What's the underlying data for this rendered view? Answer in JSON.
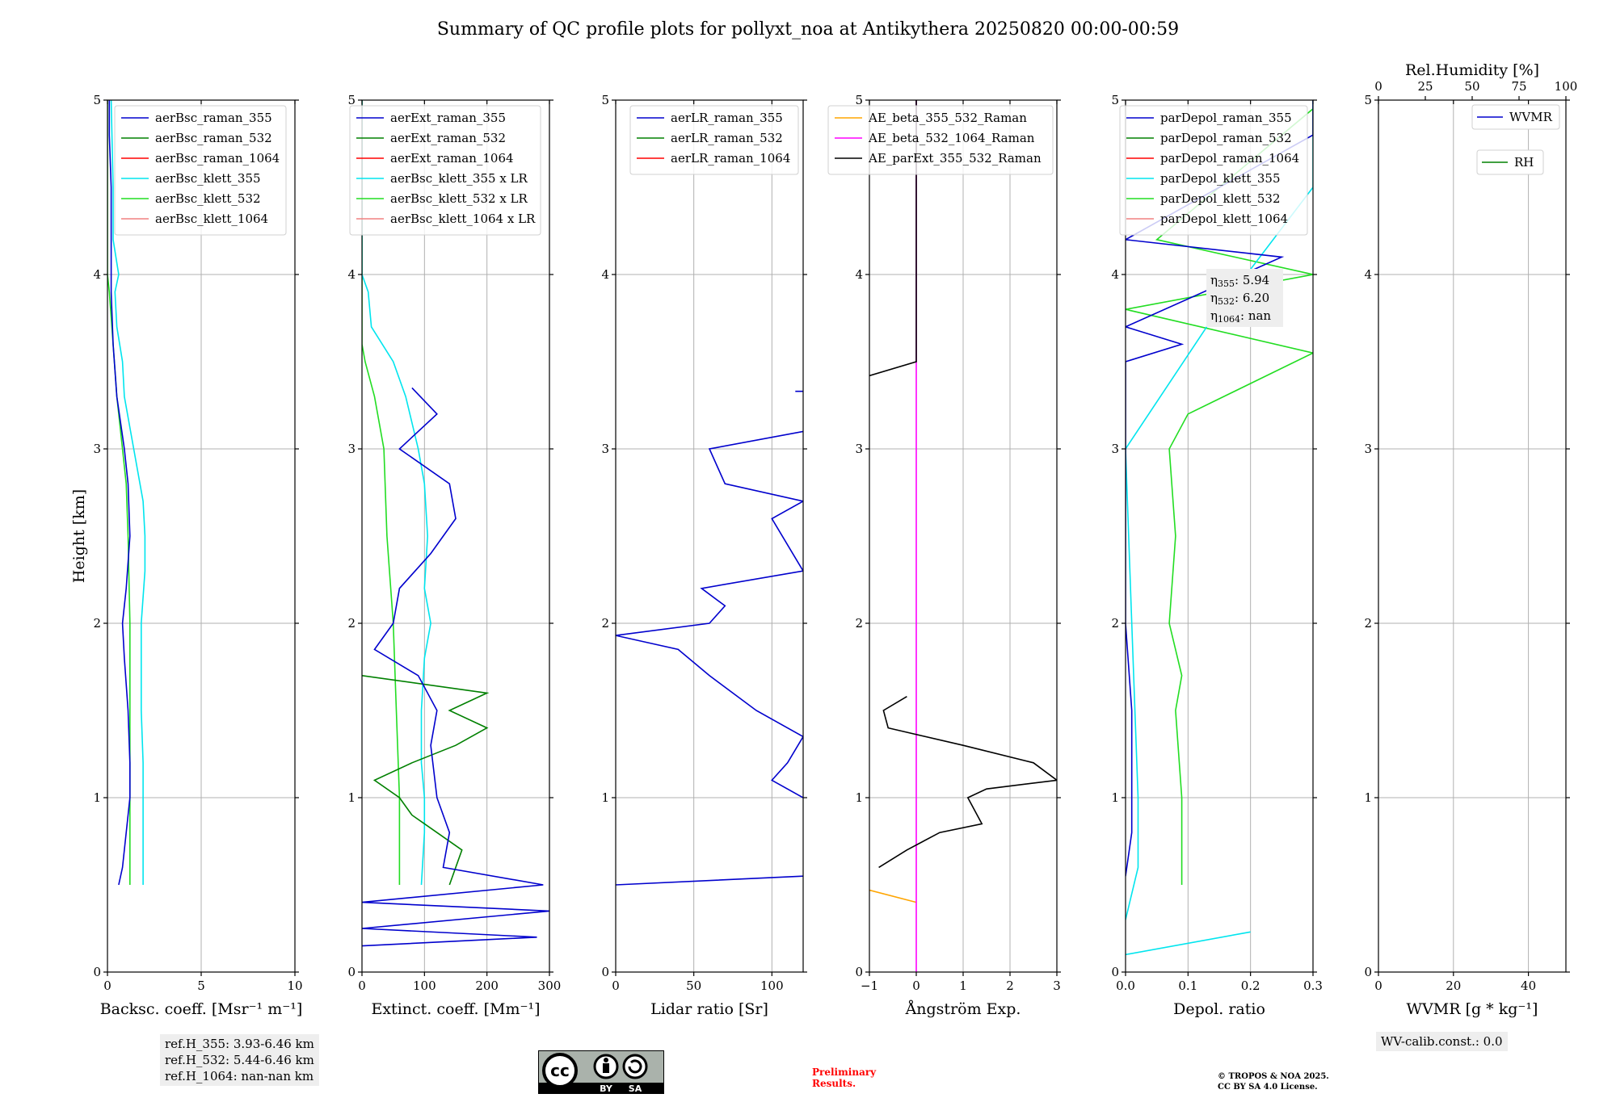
{
  "figure": {
    "title": "Summary of QC profile plots for pollyxt_noa at Antikythera 20250820 00:00-00:59"
  },
  "colors": {
    "raman_355": "#0000cd",
    "raman_532": "#008000",
    "raman_1064": "#ff0000",
    "klett_355": "#00e5ee",
    "klett_532": "#22dd22",
    "klett_1064": "#f08080",
    "orange": "#ffa500",
    "magenta": "#ff00ff",
    "black": "#000000"
  },
  "chart_data": [
    {
      "type": "line",
      "xlabel": "Backsc. coeff. [Msr⁻¹ m⁻¹]",
      "ylabel": "Height [km]",
      "xlim": [
        0,
        10
      ],
      "ylim": [
        0,
        5
      ],
      "xticks": [
        0,
        5,
        10
      ],
      "yticks": [
        0,
        1,
        2,
        3,
        4,
        5
      ],
      "grid": true,
      "legend_position": "upper-right",
      "legend": [
        "aerBsc_raman_355",
        "aerBsc_raman_532",
        "aerBsc_raman_1064",
        "aerBsc_klett_355",
        "aerBsc_klett_532",
        "aerBsc_klett_1064"
      ],
      "series": [
        {
          "name": "aerBsc_klett_355",
          "color": "klett_355",
          "points": [
            [
              1.9,
              0.5
            ],
            [
              1.9,
              0.8
            ],
            [
              1.9,
              1.0
            ],
            [
              1.9,
              1.2
            ],
            [
              1.8,
              1.5
            ],
            [
              1.8,
              1.8
            ],
            [
              1.8,
              2.0
            ],
            [
              2.0,
              2.3
            ],
            [
              2.0,
              2.5
            ],
            [
              1.9,
              2.7
            ],
            [
              1.4,
              3.0
            ],
            [
              0.9,
              3.3
            ],
            [
              0.8,
              3.5
            ],
            [
              0.5,
              3.7
            ],
            [
              0.4,
              3.9
            ],
            [
              0.6,
              4.0
            ],
            [
              0.3,
              4.2
            ],
            [
              0.3,
              4.5
            ],
            [
              0.2,
              5.0
            ]
          ]
        },
        {
          "name": "aerBsc_klett_532",
          "color": "klett_532",
          "points": [
            [
              1.2,
              0.5
            ],
            [
              1.2,
              0.8
            ],
            [
              1.2,
              1.0
            ],
            [
              1.2,
              1.5
            ],
            [
              1.2,
              2.0
            ],
            [
              1.1,
              2.5
            ],
            [
              1.0,
              2.8
            ],
            [
              0.8,
              3.0
            ],
            [
              0.5,
              3.3
            ],
            [
              0.3,
              3.6
            ],
            [
              0.1,
              3.9
            ],
            [
              0.0,
              4.0
            ],
            [
              0.0,
              5.0
            ]
          ]
        },
        {
          "name": "aerBsc_raman_355",
          "color": "raman_355",
          "points": [
            [
              0.6,
              0.5
            ],
            [
              0.8,
              0.6
            ],
            [
              1.0,
              0.8
            ],
            [
              1.2,
              1.0
            ],
            [
              1.2,
              1.2
            ],
            [
              1.1,
              1.5
            ],
            [
              0.9,
              1.8
            ],
            [
              0.8,
              2.0
            ],
            [
              1.0,
              2.2
            ],
            [
              1.2,
              2.5
            ],
            [
              1.1,
              2.8
            ],
            [
              0.9,
              3.0
            ],
            [
              0.5,
              3.3
            ],
            [
              0.3,
              3.6
            ],
            [
              0.2,
              3.9
            ],
            [
              0.2,
              4.2
            ],
            [
              0.2,
              4.5
            ],
            [
              0.1,
              4.8
            ],
            [
              0.1,
              5.0
            ]
          ]
        }
      ],
      "annotation": [
        "ref.H_355: 3.93-6.46 km",
        "ref.H_532: 5.44-6.46 km",
        "ref.H_1064: nan-nan km"
      ]
    },
    {
      "type": "line",
      "xlabel": "Extinct. coeff. [Mm⁻¹]",
      "xlim": [
        0,
        300
      ],
      "ylim": [
        0,
        5
      ],
      "xticks": [
        0,
        100,
        200,
        300
      ],
      "yticks": [
        0,
        1,
        2,
        3,
        4,
        5
      ],
      "grid": true,
      "legend_position": "upper-right",
      "legend": [
        "aerExt_raman_355",
        "aerExt_raman_532",
        "aerExt_raman_1064",
        "aerBsc_klett_355 x LR",
        "aerBsc_klett_532 x LR",
        "aerBsc_klett_1064 x LR"
      ],
      "series": [
        {
          "name": "aerBsc_klett_532 x LR",
          "color": "klett_532",
          "points": [
            [
              60,
              0.5
            ],
            [
              60,
              1.0
            ],
            [
              55,
              1.5
            ],
            [
              50,
              2.0
            ],
            [
              40,
              2.5
            ],
            [
              35,
              3.0
            ],
            [
              20,
              3.3
            ],
            [
              5,
              3.5
            ],
            [
              0,
              3.6
            ],
            [
              0,
              5.0
            ]
          ]
        },
        {
          "name": "aerBsc_klett_355 x LR",
          "color": "klett_355",
          "points": [
            [
              95,
              0.5
            ],
            [
              100,
              0.8
            ],
            [
              100,
              1.0
            ],
            [
              95,
              1.2
            ],
            [
              95,
              1.5
            ],
            [
              100,
              1.8
            ],
            [
              110,
              2.0
            ],
            [
              100,
              2.2
            ],
            [
              105,
              2.5
            ],
            [
              100,
              2.8
            ],
            [
              90,
              3.0
            ],
            [
              70,
              3.3
            ],
            [
              50,
              3.5
            ],
            [
              15,
              3.7
            ],
            [
              10,
              3.9
            ],
            [
              0,
              4.0
            ],
            [
              0,
              5.0
            ]
          ]
        },
        {
          "name": "aerExt_raman_532",
          "color": "raman_532",
          "points": [
            [
              140,
              0.5
            ],
            [
              160,
              0.7
            ],
            [
              120,
              0.8
            ],
            [
              80,
              0.9
            ],
            [
              60,
              1.0
            ],
            [
              20,
              1.1
            ],
            [
              80,
              1.2
            ],
            [
              150,
              1.3
            ],
            [
              200,
              1.4
            ],
            [
              140,
              1.5
            ],
            [
              200,
              1.6
            ],
            [
              0,
              1.7
            ]
          ]
        },
        {
          "name": "aerExt_raman_355",
          "color": "raman_355",
          "points": [
            [
              0,
              0.15
            ],
            [
              280,
              0.2
            ],
            [
              0,
              0.25
            ],
            [
              300,
              0.35
            ],
            [
              0,
              0.4
            ],
            [
              290,
              0.5
            ],
            [
              130,
              0.6
            ],
            [
              140,
              0.8
            ],
            [
              120,
              1.0
            ],
            [
              110,
              1.3
            ],
            [
              120,
              1.5
            ],
            [
              90,
              1.7
            ],
            [
              20,
              1.85
            ],
            [
              50,
              2.0
            ],
            [
              60,
              2.2
            ],
            [
              110,
              2.4
            ],
            [
              150,
              2.6
            ],
            [
              140,
              2.8
            ],
            [
              60,
              3.0
            ],
            [
              120,
              3.2
            ],
            [
              80,
              3.35
            ]
          ]
        }
      ]
    },
    {
      "type": "line",
      "xlabel": "Lidar ratio [Sr]",
      "xlim": [
        0,
        120
      ],
      "ylim": [
        0,
        5
      ],
      "xticks": [
        0,
        50,
        100
      ],
      "yticks": [
        0,
        1,
        2,
        3,
        4,
        5
      ],
      "grid": true,
      "legend_position": "upper-right",
      "legend": [
        "aerLR_raman_355",
        "aerLR_raman_532",
        "aerLR_raman_1064"
      ],
      "series": [
        {
          "name": "aerLR_raman_355",
          "color": "raman_355",
          "points": [
            [
              0,
              0.5
            ],
            [
              120,
              0.55
            ],
            [
              null,
              null
            ],
            [
              120,
              1.0
            ],
            [
              100,
              1.1
            ],
            [
              110,
              1.2
            ],
            [
              120,
              1.35
            ],
            [
              90,
              1.5
            ],
            [
              60,
              1.7
            ],
            [
              40,
              1.85
            ],
            [
              0,
              1.93
            ],
            [
              60,
              2.0
            ],
            [
              70,
              2.1
            ],
            [
              55,
              2.2
            ],
            [
              120,
              2.3
            ],
            [
              100,
              2.6
            ],
            [
              120,
              2.7
            ],
            [
              70,
              2.8
            ],
            [
              60,
              3.0
            ],
            [
              120,
              3.1
            ],
            [
              null,
              null
            ],
            [
              115,
              3.33
            ],
            [
              120,
              3.33
            ]
          ]
        }
      ]
    },
    {
      "type": "line",
      "xlabel": "Ångström Exp.",
      "xlim": [
        -1,
        3
      ],
      "ylim": [
        0,
        5
      ],
      "xticks": [
        -1,
        0,
        1,
        2,
        3
      ],
      "yticks": [
        0,
        1,
        2,
        3,
        4,
        5
      ],
      "grid": true,
      "legend_position": "upper-right",
      "legend": [
        "AE_beta_355_532_Raman",
        "AE_beta_532_1064_Raman",
        "AE_parExt_355_532_Raman"
      ],
      "series": [
        {
          "name": "AE_beta_355_532_Raman",
          "color": "orange",
          "points": [
            [
              -1,
              0.47
            ],
            [
              0,
              0.4
            ]
          ]
        },
        {
          "name": "AE_beta_532_1064_Raman",
          "color": "magenta",
          "points": [
            [
              0,
              0.0
            ],
            [
              0,
              5.0
            ]
          ]
        },
        {
          "name": "AE_parExt_355_532_Raman",
          "color": "black",
          "points": [
            [
              -0.8,
              0.6
            ],
            [
              -0.2,
              0.7
            ],
            [
              0.5,
              0.8
            ],
            [
              1.4,
              0.85
            ],
            [
              1.1,
              1.0
            ],
            [
              1.5,
              1.05
            ],
            [
              3.0,
              1.1
            ],
            [
              2.5,
              1.2
            ],
            [
              1.0,
              1.3
            ],
            [
              -0.6,
              1.4
            ],
            [
              -0.7,
              1.5
            ],
            [
              -0.2,
              1.58
            ],
            [
              null,
              null
            ],
            [
              -1.0,
              3.42
            ],
            [
              0.0,
              3.5
            ],
            [
              0.0,
              5.0
            ]
          ]
        }
      ]
    },
    {
      "type": "line",
      "xlabel": "Depol. ratio",
      "xlim": [
        0,
        0.3
      ],
      "ylim": [
        0,
        5
      ],
      "xticks": [
        0.0,
        0.1,
        0.2,
        0.3
      ],
      "yticks": [
        0,
        1,
        2,
        3,
        4,
        5
      ],
      "grid": true,
      "legend_position": "upper-right",
      "legend": [
        "parDepol_raman_355",
        "parDepol_raman_532",
        "parDepol_raman_1064",
        "parDepol_klett_355",
        "parDepol_klett_532",
        "parDepol_klett_1064"
      ],
      "series": [
        {
          "name": "parDepol_klett_532",
          "color": "klett_532",
          "points": [
            [
              0.09,
              0.5
            ],
            [
              0.09,
              1.0
            ],
            [
              0.08,
              1.5
            ],
            [
              0.09,
              1.7
            ],
            [
              0.07,
              2.0
            ],
            [
              0.08,
              2.5
            ],
            [
              0.07,
              3.0
            ],
            [
              0.1,
              3.2
            ],
            [
              0.3,
              3.55
            ],
            [
              0.0,
              3.8
            ],
            [
              0.3,
              4.0
            ],
            [
              0.05,
              4.2
            ],
            [
              0.3,
              4.95
            ]
          ]
        },
        {
          "name": "parDepol_klett_355",
          "color": "klett_355",
          "points": [
            [
              0.0,
              0.1
            ],
            [
              0.2,
              0.23
            ],
            [
              null,
              null
            ],
            [
              0.0,
              0.3
            ],
            [
              0.02,
              0.6
            ],
            [
              0.02,
              1.0
            ],
            [
              0.01,
              2.0
            ],
            [
              0.0,
              3.0
            ],
            [
              0.13,
              3.7
            ],
            [
              0.3,
              4.5
            ],
            [
              0.3,
              5.0
            ]
          ]
        },
        {
          "name": "parDepol_raman_355",
          "color": "raman_355",
          "points": [
            [
              0.0,
              0.55
            ],
            [
              0.01,
              0.8
            ],
            [
              0.01,
              1.5
            ],
            [
              0.0,
              2.0
            ],
            [
              0.0,
              3.0
            ],
            [
              0.0,
              3.5
            ],
            [
              0.09,
              3.6
            ],
            [
              0.0,
              3.7
            ],
            [
              0.25,
              4.1
            ],
            [
              0.0,
              4.2
            ],
            [
              0.3,
              4.8
            ],
            [
              0.3,
              5.0
            ]
          ]
        }
      ],
      "annotation": [
        "η355: 5.94",
        "η532: 6.20",
        "η1064: nan"
      ]
    },
    {
      "type": "line",
      "xlabel": "WVMR [g * kg⁻¹]",
      "x2label": "Rel.Humidity [%]",
      "xlim": [
        0,
        50
      ],
      "x2lim": [
        0,
        100
      ],
      "ylim": [
        0,
        5
      ],
      "xticks": [
        0,
        20,
        40
      ],
      "x2ticks": [
        0,
        25,
        50,
        75,
        100
      ],
      "yticks": [
        0,
        1,
        2,
        3,
        4,
        5
      ],
      "grid": true,
      "legend_position": "upper-right",
      "legend": [
        "WVMR",
        "RH"
      ],
      "series": [],
      "annotation": [
        "WV-calib.const.: 0.0"
      ]
    }
  ],
  "footer": {
    "preliminary": [
      "Preliminary",
      "Results."
    ],
    "copyright": [
      "© TROPOS & NOA 2025.",
      "CC BY SA 4.0 License."
    ],
    "cc_label_by": "BY",
    "cc_label_sa": "SA",
    "cc_label_cc": "cc"
  }
}
